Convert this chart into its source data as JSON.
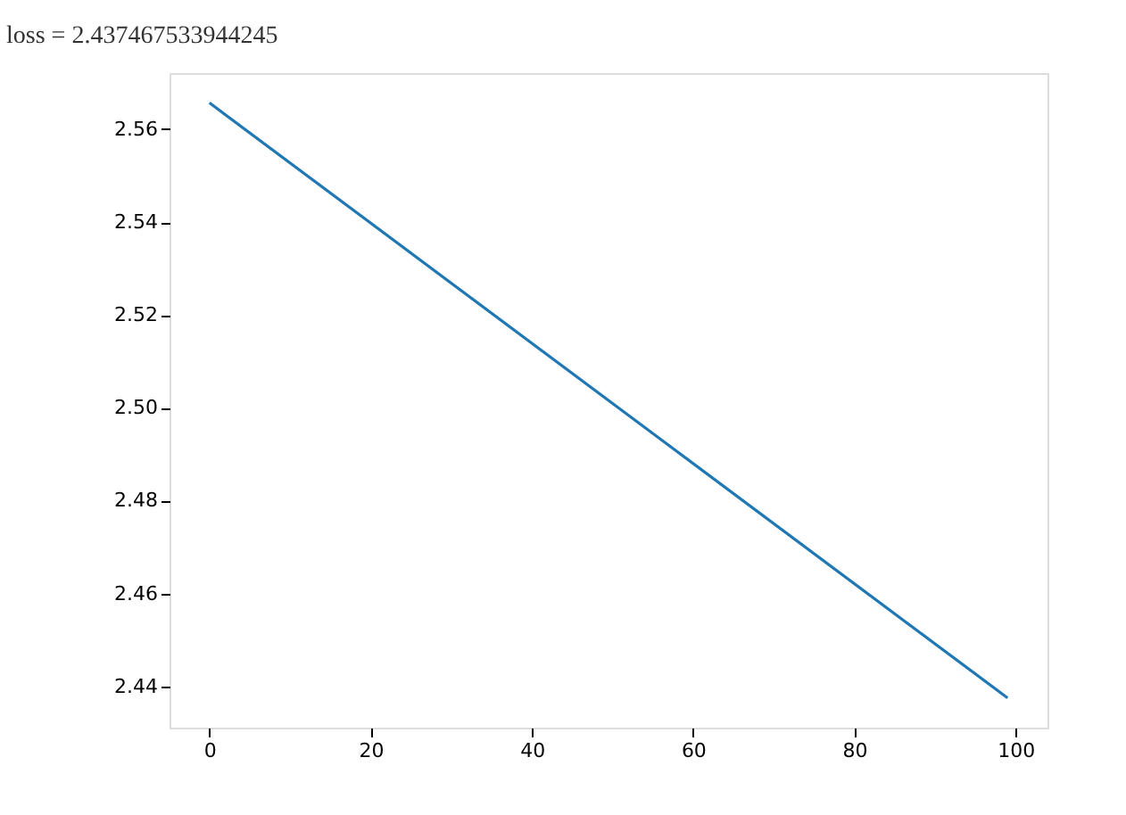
{
  "chart_data": {
    "type": "line",
    "annotations": [
      "loss =  2.437467533944245"
    ],
    "x": [
      0,
      99
    ],
    "series": [
      {
        "color": "#1f77b4",
        "values": [
          2.5657,
          2.4375
        ]
      }
    ],
    "xlim": [
      -4.95,
      103.95
    ],
    "xticks": [
      0,
      20,
      40,
      60,
      80,
      100
    ],
    "ylim": [
      2.4311,
      2.5721
    ],
    "yticks": [
      {
        "value": 2.44,
        "label": "2.44"
      },
      {
        "value": 2.46,
        "label": "2.46"
      },
      {
        "value": 2.48,
        "label": "2.48"
      },
      {
        "value": 2.5,
        "label": "2.50"
      },
      {
        "value": 2.52,
        "label": "2.52"
      },
      {
        "value": 2.54,
        "label": "2.54"
      },
      {
        "value": 2.56,
        "label": "2.56"
      }
    ],
    "grid": false,
    "legend": false,
    "marker": "none",
    "line_style": "solid"
  }
}
